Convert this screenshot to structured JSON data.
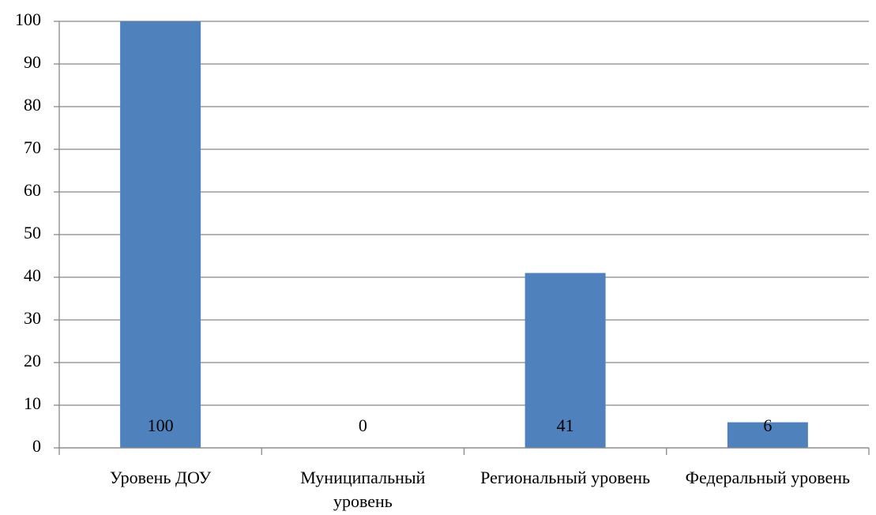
{
  "chart_data": {
    "type": "bar",
    "categories": [
      "Уровень ДОУ",
      "Муниципальный уровень",
      "Региональный уровень",
      "Федеральный уровень"
    ],
    "values": [
      100,
      0,
      41,
      6
    ],
    "color": "#4f81bd",
    "ylim": [
      0,
      100
    ],
    "yticks": [
      0,
      10,
      20,
      30,
      40,
      50,
      60,
      70,
      80,
      90,
      100
    ],
    "grid": true
  }
}
